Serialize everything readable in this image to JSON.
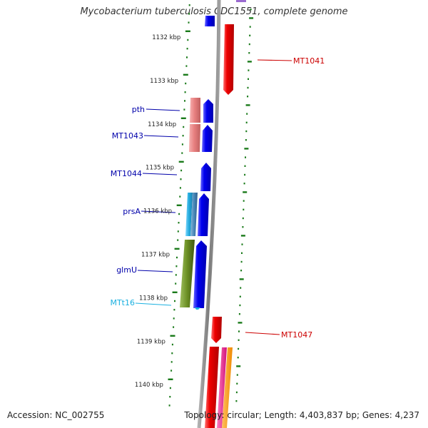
{
  "title": "Mycobacterium tuberculosis CDC1551, complete genome",
  "accession": "Accession: NC_002755",
  "summary": "Topology: circular; Length: 4,403,837 bp; Genes: 4,237",
  "ruler": [
    {
      "label": "1132 kbp"
    },
    {
      "label": "1133 kbp"
    },
    {
      "label": "1134 kbp"
    },
    {
      "label": "1135 kbp"
    },
    {
      "label": "1136 kbp"
    },
    {
      "label": "1137 kbp"
    },
    {
      "label": "1138 kbp"
    },
    {
      "label": "1139 kbp"
    },
    {
      "label": "1140 kbp"
    }
  ],
  "gene_labels": [
    {
      "text": "MT1041",
      "color": "#cc0000"
    },
    {
      "text": "pth",
      "color": "#0000aa"
    },
    {
      "text": "MT1043",
      "color": "#0000aa"
    },
    {
      "text": "MT1044",
      "color": "#0000aa"
    },
    {
      "text": "prsA",
      "color": "#0000aa"
    },
    {
      "text": "glmU",
      "color": "#0000aa"
    },
    {
      "text": "MTt16",
      "color": "#1ab0e0"
    },
    {
      "text": "MT1047",
      "color": "#cc0000"
    }
  ],
  "colors": {
    "forward_cds": "#ee0000",
    "reverse_cds": "#0000ee",
    "rna": "#22aadd",
    "tick": "#1a7a1a",
    "backbone": "#8a8a8a"
  }
}
